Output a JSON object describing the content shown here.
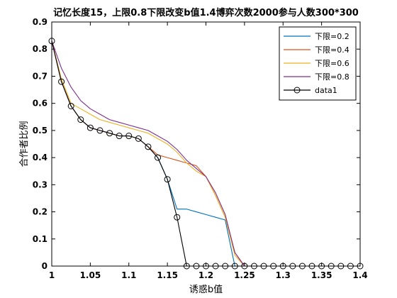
{
  "chart_data": {
    "type": "line",
    "title": "记忆长度15，上限0.8下限改变b值1.4博弈次数2000参与人数300*300",
    "xlabel": "诱惑b值",
    "ylabel": "合作者比例",
    "xlim": [
      1,
      1.4
    ],
    "ylim": [
      0,
      0.9
    ],
    "xticks": [
      1,
      1.05,
      1.1,
      1.15,
      1.2,
      1.25,
      1.3,
      1.35,
      1.4
    ],
    "xtick_labels": [
      "1",
      "1.05",
      "1.1",
      "1.15",
      "1.2",
      "1.25",
      "1.3",
      "1.35",
      "1.4"
    ],
    "yticks": [
      0,
      0.1,
      0.2,
      0.3,
      0.4,
      0.5,
      0.6,
      0.7,
      0.8,
      0.9
    ],
    "ytick_labels": [
      "0",
      "0.1",
      "0.2",
      "0.3",
      "0.4",
      "0.5",
      "0.6",
      "0.7",
      "0.8",
      "0.9"
    ],
    "grid": false,
    "legend_position": "top-right",
    "series": [
      {
        "name": "下限=0.2",
        "color": "#0072BD",
        "marker": "none",
        "x": [
          1,
          1.0125,
          1.025,
          1.0375,
          1.05,
          1.0625,
          1.075,
          1.0875,
          1.1,
          1.1125,
          1.125,
          1.1375,
          1.15,
          1.1625,
          1.175,
          1.1875,
          1.2,
          1.2125,
          1.225,
          1.2375,
          1.25,
          1.2625,
          1.275,
          1.2875,
          1.3,
          1.3125,
          1.325,
          1.3375,
          1.35,
          1.3625,
          1.375,
          1.3875,
          1.4
        ],
        "y": [
          0.83,
          0.68,
          0.59,
          0.54,
          0.51,
          0.5,
          0.49,
          0.48,
          0.48,
          0.47,
          0.44,
          0.4,
          0.32,
          0.21,
          0.21,
          0.2,
          0.19,
          0.18,
          0.17,
          0,
          0,
          0,
          0,
          0,
          0,
          0,
          0,
          0,
          0,
          0,
          0,
          0,
          0
        ]
      },
      {
        "name": "下限=0.4",
        "color": "#D95319",
        "marker": "none",
        "x": [
          1,
          1.0125,
          1.025,
          1.0375,
          1.05,
          1.0625,
          1.075,
          1.0875,
          1.1,
          1.1125,
          1.125,
          1.1375,
          1.15,
          1.1625,
          1.175,
          1.1875,
          1.2,
          1.2125,
          1.225,
          1.2375,
          1.25,
          1.2625,
          1.275,
          1.2875,
          1.3,
          1.3125,
          1.325,
          1.3375,
          1.35,
          1.3625,
          1.375,
          1.3875,
          1.4
        ],
        "y": [
          0.83,
          0.68,
          0.59,
          0.54,
          0.51,
          0.5,
          0.49,
          0.48,
          0.48,
          0.47,
          0.44,
          0.41,
          0.4,
          0.39,
          0.38,
          0.37,
          0.33,
          0.26,
          0.18,
          0.05,
          0,
          0,
          0,
          0,
          0,
          0,
          0,
          0,
          0,
          0,
          0,
          0,
          0
        ]
      },
      {
        "name": "下限=0.6",
        "color": "#EDB120",
        "marker": "none",
        "x": [
          1,
          1.0125,
          1.025,
          1.0375,
          1.05,
          1.0625,
          1.075,
          1.0875,
          1.1,
          1.1125,
          1.125,
          1.1375,
          1.15,
          1.1625,
          1.175,
          1.1875,
          1.2,
          1.2125,
          1.225,
          1.2375,
          1.25,
          1.2625,
          1.275,
          1.2875,
          1.3,
          1.3125,
          1.325,
          1.3375,
          1.35,
          1.3625,
          1.375,
          1.3875,
          1.4
        ],
        "y": [
          0.83,
          0.69,
          0.6,
          0.58,
          0.56,
          0.54,
          0.53,
          0.52,
          0.51,
          0.5,
          0.49,
          0.47,
          0.45,
          0.42,
          0.38,
          0.35,
          0.33,
          0.26,
          0.18,
          0.04,
          0,
          0,
          0,
          0,
          0,
          0,
          0,
          0,
          0,
          0,
          0,
          0,
          0
        ]
      },
      {
        "name": "下限=0.8",
        "color": "#7E2F8E",
        "marker": "none",
        "x": [
          1,
          1.0125,
          1.025,
          1.0375,
          1.05,
          1.0625,
          1.075,
          1.0875,
          1.1,
          1.1125,
          1.125,
          1.1375,
          1.15,
          1.1625,
          1.175,
          1.1875,
          1.2,
          1.2125,
          1.225,
          1.2375,
          1.25,
          1.2625,
          1.275,
          1.2875,
          1.3,
          1.3125,
          1.325,
          1.3375,
          1.35,
          1.3625,
          1.375,
          1.3875,
          1.4
        ],
        "y": [
          0.83,
          0.73,
          0.66,
          0.61,
          0.58,
          0.56,
          0.54,
          0.53,
          0.52,
          0.51,
          0.5,
          0.48,
          0.46,
          0.43,
          0.39,
          0.36,
          0.33,
          0.27,
          0.19,
          0.05,
          0,
          0,
          0,
          0,
          0,
          0,
          0,
          0,
          0,
          0,
          0,
          0,
          0
        ]
      },
      {
        "name": "data1",
        "color": "#000000",
        "marker": "circle",
        "x": [
          1,
          1.0125,
          1.025,
          1.0375,
          1.05,
          1.0625,
          1.075,
          1.0875,
          1.1,
          1.1125,
          1.125,
          1.1375,
          1.15,
          1.1625,
          1.175,
          1.1875,
          1.2,
          1.2125,
          1.225,
          1.2375,
          1.25,
          1.2625,
          1.275,
          1.2875,
          1.3,
          1.3125,
          1.325,
          1.3375,
          1.35,
          1.3625,
          1.375,
          1.3875,
          1.4
        ],
        "y": [
          0.83,
          0.68,
          0.59,
          0.54,
          0.51,
          0.5,
          0.49,
          0.48,
          0.48,
          0.47,
          0.44,
          0.4,
          0.32,
          0.18,
          0,
          0,
          0,
          0,
          0,
          0,
          0,
          0,
          0,
          0,
          0,
          0,
          0,
          0,
          0,
          0,
          0,
          0,
          0
        ]
      }
    ]
  }
}
